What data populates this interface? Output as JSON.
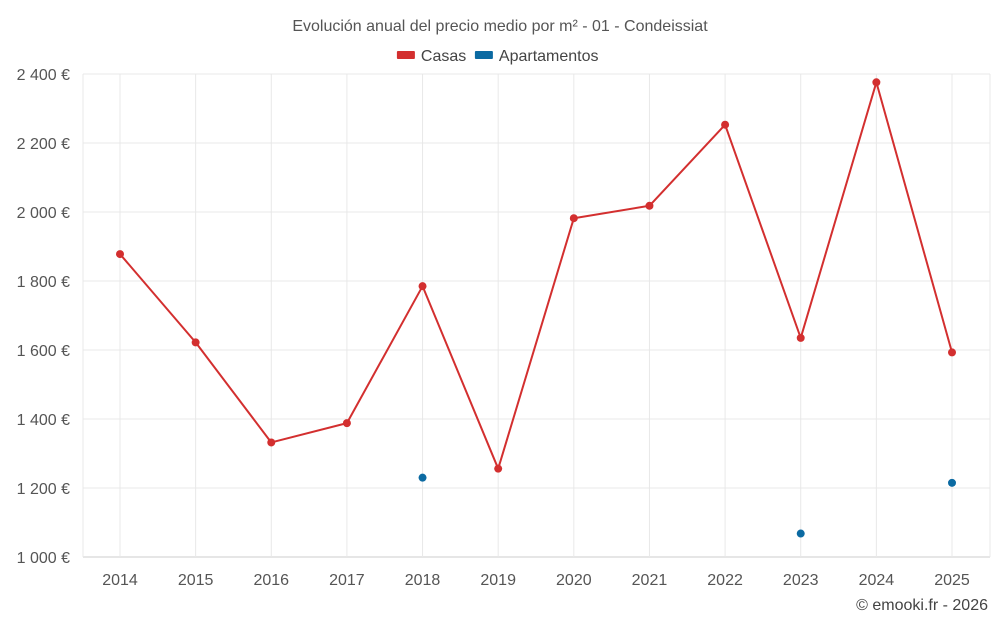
{
  "chart_data": {
    "type": "line",
    "title": "Evolución anual del precio medio por m² - 01 - Condeissiat",
    "categories": [
      "2014",
      "2015",
      "2016",
      "2017",
      "2018",
      "2019",
      "2020",
      "2021",
      "2022",
      "2023",
      "2024",
      "2025"
    ],
    "series": [
      {
        "name": "Casas",
        "color": "#d32f2f",
        "style": "line",
        "values": [
          1878,
          1622,
          1332,
          1388,
          1785,
          1256,
          1982,
          2018,
          2253,
          1635,
          2376,
          1593
        ]
      },
      {
        "name": "Apartamentos",
        "color": "#0b6aa2",
        "style": "points",
        "values": [
          null,
          null,
          null,
          null,
          1230,
          null,
          null,
          null,
          null,
          1068,
          null,
          1215
        ]
      }
    ],
    "ylim": [
      1000,
      2400
    ],
    "yticks": [
      1000,
      1200,
      1400,
      1600,
      1800,
      2000,
      2200,
      2400
    ],
    "ytick_labels": [
      "1 000 €",
      "1 200 €",
      "1 400 €",
      "1 600 €",
      "1 800 €",
      "2 000 €",
      "2 200 €",
      "2 400 €"
    ],
    "xlabel": "",
    "ylabel": "",
    "grid": true,
    "legend_position": "top-center"
  },
  "credit": "© emooki.fr - 2026"
}
